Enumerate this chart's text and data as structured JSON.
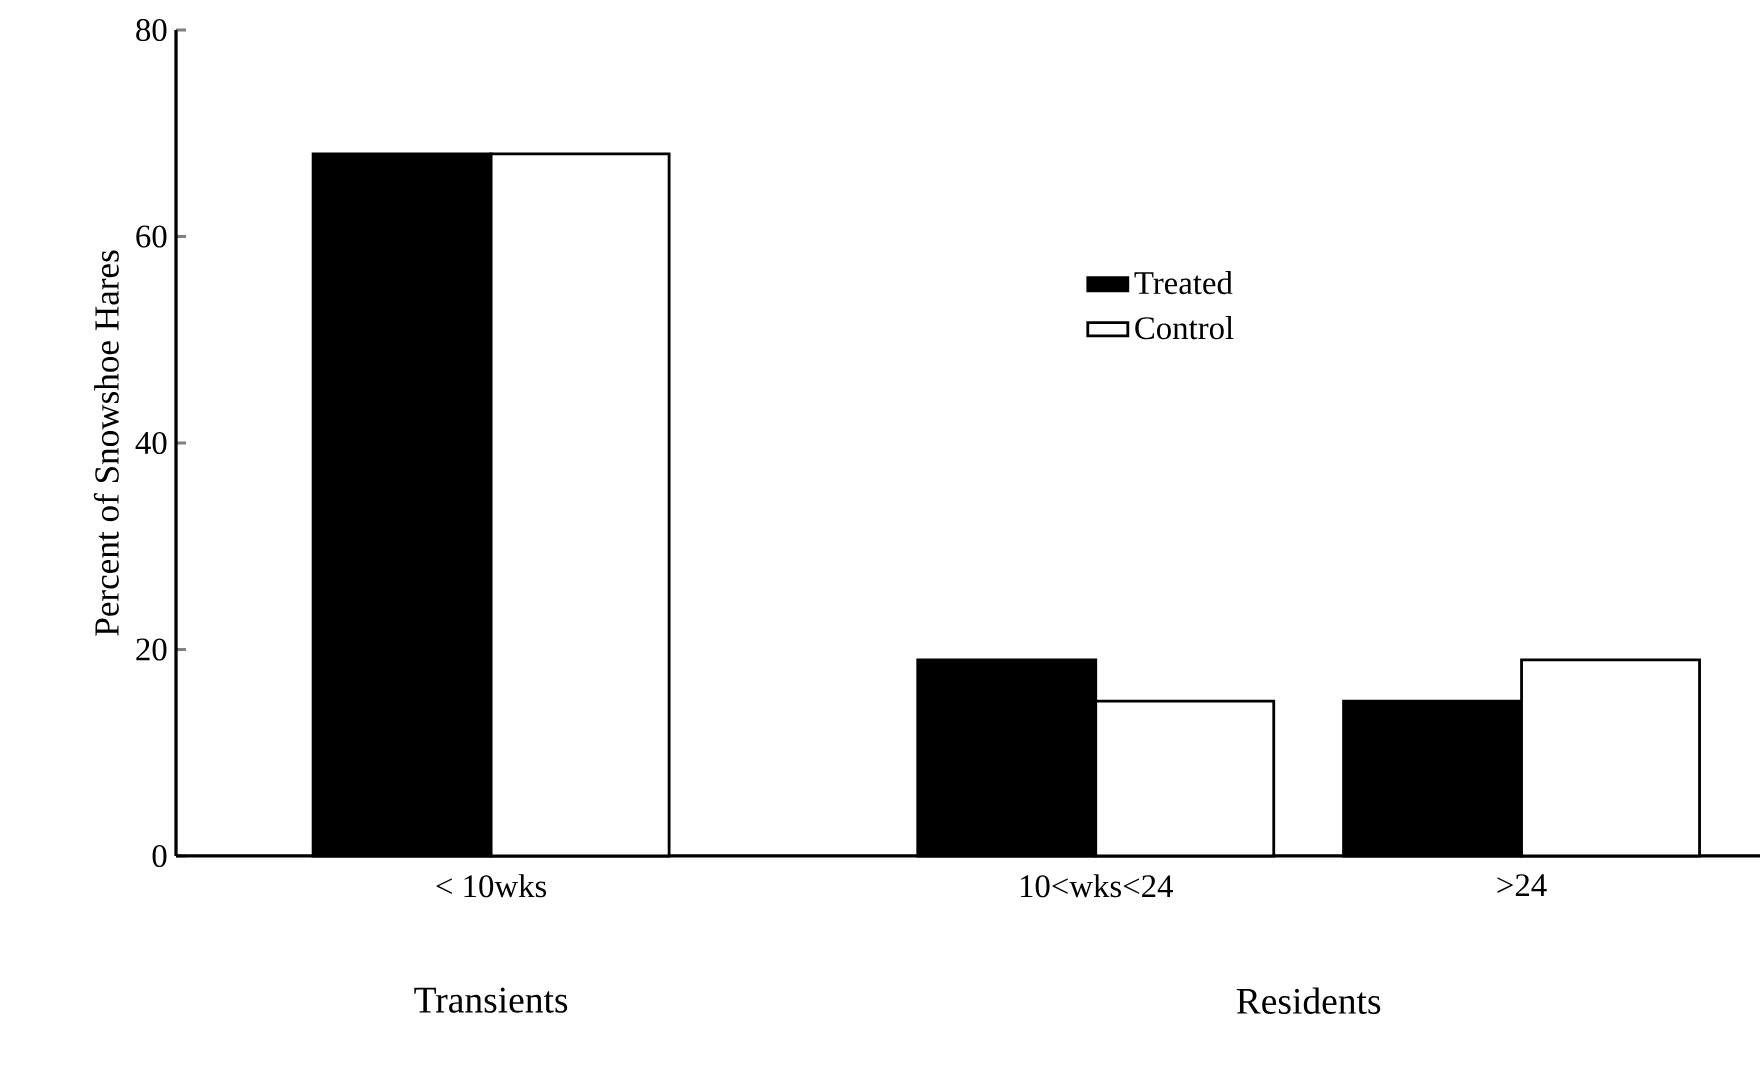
{
  "chart_data": {
    "type": "bar",
    "ylabel": "Percent of Snowshoe Hares",
    "categories": [
      "< 10wks",
      "10<wks<24",
      ">24"
    ],
    "series": [
      {
        "name": "Treated",
        "color": "#000000",
        "values": [
          68,
          19,
          15
        ]
      },
      {
        "name": "Control",
        "color": "#ffffff",
        "values": [
          68,
          15,
          19
        ]
      }
    ],
    "ylim": [
      0,
      80
    ],
    "yticks": [
      0,
      20,
      40,
      60,
      80
    ],
    "legend": "top right",
    "annotations": [
      {
        "text": "Transients"
      },
      {
        "text": "Residents"
      }
    ]
  }
}
